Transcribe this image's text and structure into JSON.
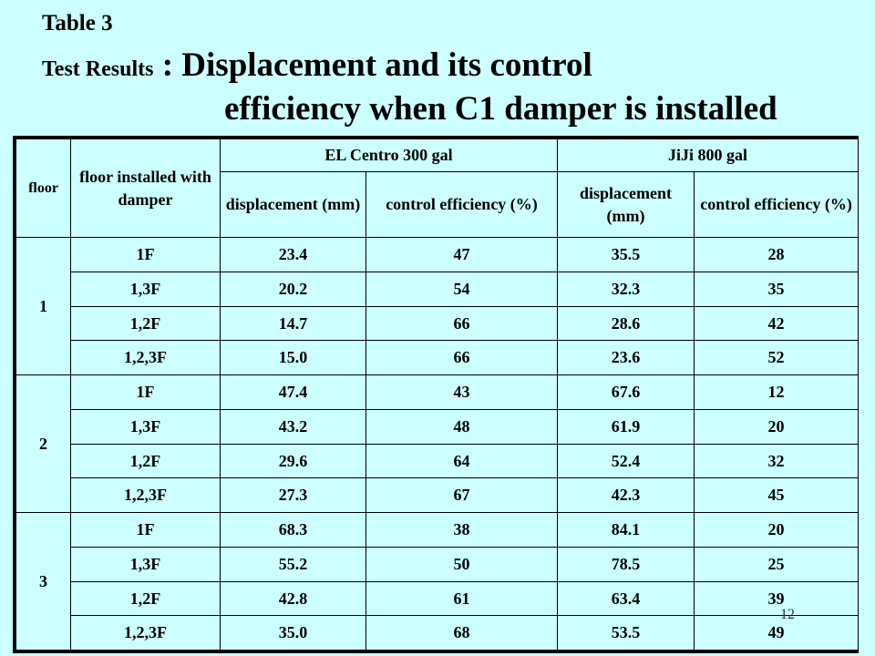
{
  "title": {
    "label": "Table 3",
    "prefix": "Test Results",
    "separator": " : ",
    "main_line1": "Displacement and its control",
    "main_line2": "efficiency when C1 damper is installed"
  },
  "table": {
    "headers": {
      "floor": "floor",
      "installed": "floor installed with damper",
      "group1": "EL Centro 300 gal",
      "group2": "JiJi 800 gal",
      "g1_disp": "displacement (mm)",
      "g1_eff": "control efficiency (%)",
      "g2_disp": "displacement (mm)",
      "g2_eff": "control efficiency (%)"
    },
    "groups": [
      {
        "floor": "1",
        "rows": [
          [
            "1F",
            "23.4",
            "47",
            "35.5",
            "28"
          ],
          [
            "1,3F",
            "20.2",
            "54",
            "32.3",
            "35"
          ],
          [
            "1,2F",
            "14.7",
            "66",
            "28.6",
            "42"
          ],
          [
            "1,2,3F",
            "15.0",
            "66",
            "23.6",
            "52"
          ]
        ]
      },
      {
        "floor": "2",
        "rows": [
          [
            "1F",
            "47.4",
            "43",
            "67.6",
            "12"
          ],
          [
            "1,3F",
            "43.2",
            "48",
            "61.9",
            "20"
          ],
          [
            "1,2F",
            "29.6",
            "64",
            "52.4",
            "32"
          ],
          [
            "1,2,3F",
            "27.3",
            "67",
            "42.3",
            "45"
          ]
        ]
      },
      {
        "floor": "3",
        "rows": [
          [
            "1F",
            "68.3",
            "38",
            "84.1",
            "20"
          ],
          [
            "1,3F",
            "55.2",
            "50",
            "78.5",
            "25"
          ],
          [
            "1,2F",
            "42.8",
            "61",
            "63.4",
            "39"
          ],
          [
            "1,2,3F",
            "35.0",
            "68",
            "53.5",
            "49"
          ]
        ]
      }
    ]
  },
  "page_number": "12",
  "colors": {
    "background": "#ccffff",
    "border": "#000000"
  }
}
